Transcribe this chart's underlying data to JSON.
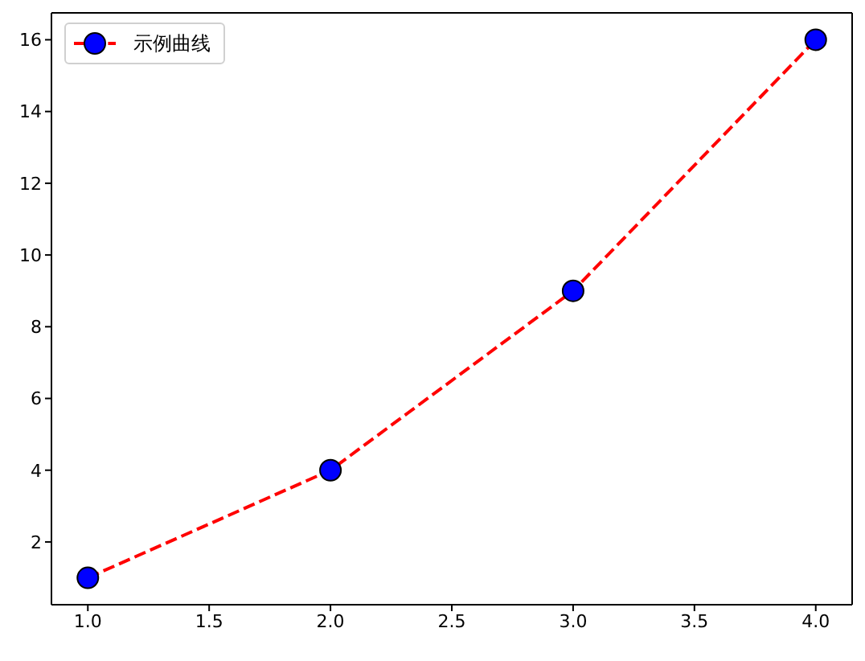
{
  "chart_data": {
    "type": "line",
    "x": [
      1,
      2,
      3,
      4
    ],
    "series": [
      {
        "name": "示例曲线",
        "color": "#ff0000",
        "colors": [
          "#0000ff",
          "#0000ff",
          "#0000ff",
          "#0000ff"
        ],
        "values": [
          1,
          4,
          9,
          16
        ]
      }
    ],
    "xlim": [
      0.85,
      4.15
    ],
    "ylim": [
      0.25,
      16.75
    ],
    "xticks": [
      {
        "value": 1,
        "label": "1.0"
      },
      {
        "value": 1.5,
        "label": "1.5"
      },
      {
        "value": 2,
        "label": "2.0"
      },
      {
        "value": 2.5,
        "label": "2.5"
      },
      {
        "value": 3,
        "label": "3.0"
      },
      {
        "value": 3.5,
        "label": "3.5"
      },
      {
        "value": 4,
        "label": "4.0"
      }
    ],
    "yticks": [
      2,
      4,
      6,
      8,
      10,
      12,
      14,
      16
    ],
    "legend": "top left",
    "marker": "circle",
    "line_style": "dashed"
  }
}
